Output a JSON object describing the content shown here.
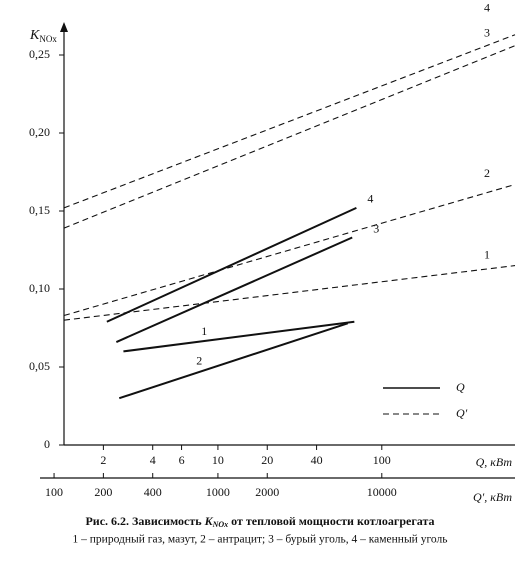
{
  "chart_data": {
    "type": "line",
    "y_label": "K",
    "y_label_sub": "NOx",
    "x_label": "Q, кВт",
    "x2_label": "Q′, кВт",
    "caption": [
      "Рис. 6.2. Зависимость ",
      "K",
      "NOx",
      " от тепловой мощности котлоагрегата"
    ],
    "caption_note": "1 – природный газ, мазут, 2 – антрацит; 3 – бурый уголь, 4 – каменный уголь",
    "xscale": "log",
    "x2scale": "log",
    "xlim": [
      1.15,
      650
    ],
    "x2lim": [
      115,
      65000
    ],
    "xticks": [
      2,
      4,
      6,
      10,
      20,
      40,
      100
    ],
    "x2ticks": [
      100,
      200,
      400,
      1000,
      2000,
      10000
    ],
    "ylim": [
      0,
      0.26
    ],
    "yticks": [
      0,
      {
        "value": 0.05,
        "label": "0,05"
      },
      {
        "value": 0.1,
        "label": "0,10"
      },
      {
        "value": 0.15,
        "label": "0,15"
      },
      {
        "value": 0.2,
        "label": "0,20"
      },
      {
        "value": 0.25,
        "label": "0,25"
      }
    ],
    "legend": [
      {
        "label": "Q",
        "style": "solid"
      },
      {
        "label": "Q′",
        "style": "dashed"
      }
    ],
    "series": [
      {
        "name": "4",
        "style": "dashed",
        "axis": "x2",
        "color": "#111",
        "x": [
          115,
          65000
        ],
        "values": [
          0.152,
          0.263
        ]
      },
      {
        "name": "3",
        "style": "dashed",
        "axis": "x2",
        "color": "#111",
        "x": [
          115,
          65000
        ],
        "values": [
          0.139,
          0.256
        ]
      },
      {
        "name": "2",
        "style": "dashed",
        "axis": "x2",
        "color": "#111",
        "x": [
          115,
          65000
        ],
        "values": [
          0.083,
          0.167
        ]
      },
      {
        "name": "1",
        "style": "dashed",
        "axis": "x2",
        "color": "#111",
        "x": [
          115,
          65000
        ],
        "values": [
          0.08,
          0.115
        ]
      },
      {
        "name": "4",
        "style": "solid",
        "axis": "x",
        "color": "#111",
        "x": [
          2.1,
          70
        ],
        "values": [
          0.079,
          0.152
        ]
      },
      {
        "name": "3",
        "style": "solid",
        "axis": "x",
        "color": "#111",
        "x": [
          2.4,
          66
        ],
        "values": [
          0.066,
          0.133
        ]
      },
      {
        "name": "1",
        "style": "solid",
        "axis": "x",
        "color": "#111",
        "x": [
          2.65,
          68
        ],
        "values": [
          0.06,
          0.079
        ]
      },
      {
        "name": "2",
        "style": "solid",
        "axis": "x",
        "color": "#111",
        "x": [
          2.5,
          62
        ],
        "values": [
          0.03,
          0.078
        ]
      }
    ]
  }
}
